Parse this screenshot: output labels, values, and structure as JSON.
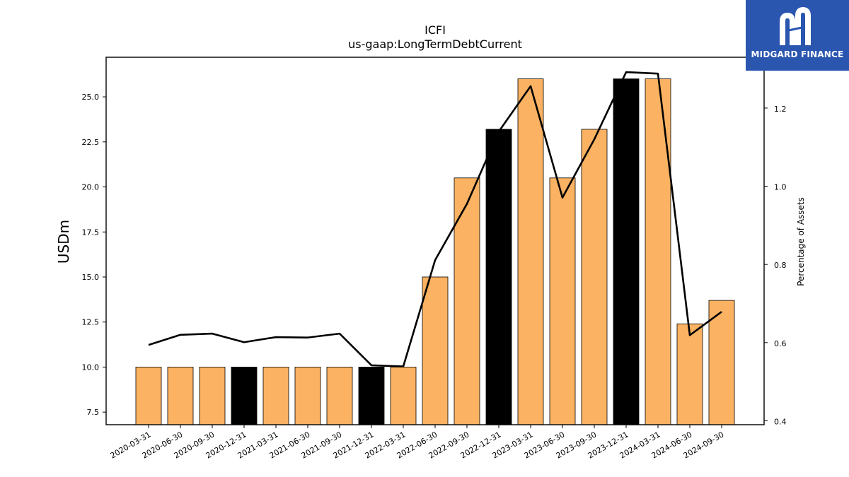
{
  "brand": {
    "name": "MIDGARD FINANCE",
    "color": "#2a56b0"
  },
  "chart_data": {
    "type": "bar",
    "title": "ICFI",
    "subtitle": "us-gaap:LongTermDebtCurrent",
    "ylabel": "USDm",
    "ylabel_right": "Percentage of Assets",
    "categories": [
      "2020-03-31",
      "2020-06-30",
      "2020-09-30",
      "2020-12-31",
      "2021-03-31",
      "2021-06-30",
      "2021-09-30",
      "2021-12-31",
      "2022-03-31",
      "2022-06-30",
      "2022-09-30",
      "2022-12-31",
      "2023-03-31",
      "2023-06-30",
      "2023-09-30",
      "2023-12-31",
      "2024-03-31",
      "2024-06-30",
      "2024-09-30"
    ],
    "series": [
      {
        "type": "bar",
        "values": [
          10.0,
          10.0,
          10.0,
          10.0,
          10.0,
          10.0,
          10.0,
          10.0,
          10.0,
          15.0,
          20.5,
          23.2,
          26.0,
          20.5,
          23.2,
          26.0,
          26.0,
          12.4,
          13.7
        ],
        "highlight": [
          false,
          false,
          false,
          true,
          false,
          false,
          false,
          true,
          false,
          false,
          false,
          true,
          false,
          false,
          false,
          true,
          false,
          false,
          false
        ],
        "color": "#fbb262",
        "highlight_color": "#000000"
      },
      {
        "type": "line",
        "axis": "right",
        "values": [
          0.594,
          0.62,
          0.623,
          0.601,
          0.614,
          0.613,
          0.623,
          0.542,
          0.539,
          0.811,
          0.955,
          1.14,
          1.256,
          0.971,
          1.12,
          1.292,
          1.288,
          0.619,
          0.679
        ],
        "color": "#000000"
      }
    ],
    "ylim": [
      6.8,
      27.2
    ],
    "yticks": [
      7.5,
      10.0,
      12.5,
      15.0,
      17.5,
      20.0,
      22.5,
      25.0
    ],
    "ylim_right": [
      0.39,
      1.33
    ],
    "yticks_right": [
      0.4,
      0.6,
      0.8,
      1.0,
      1.2
    ],
    "grid": false,
    "legend": "none"
  }
}
